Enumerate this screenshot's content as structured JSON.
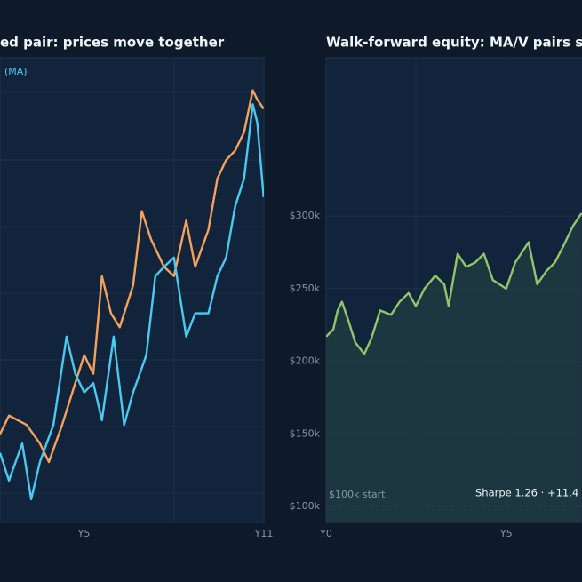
{
  "chart_data": [
    {
      "type": "line",
      "title": "ed pair: prices move together",
      "xlim": [
        2.2,
        11
      ],
      "ylim": [
        0,
        100
      ],
      "xticks": [
        {
          "value": 5,
          "label": "Y5"
        },
        {
          "value": 11,
          "label": "Y11"
        }
      ],
      "grid": true,
      "series": [
        {
          "color": "#f5a25d",
          "x": [
            2.2,
            2.5,
            3.09,
            3.53,
            3.83,
            4.27,
            4.71,
            5.01,
            5.31,
            5.6,
            5.9,
            6.19,
            6.64,
            6.93,
            7.23,
            7.67,
            8.0,
            8.41,
            8.71,
            9.15,
            9.45,
            9.74,
            10.04,
            10.34,
            10.63,
            10.78,
            10.99
          ],
          "values": [
            19,
            23,
            21,
            17,
            13,
            21,
            30,
            36,
            32,
            53,
            45,
            42,
            51,
            67,
            61,
            55,
            53,
            65,
            55,
            63,
            74,
            78,
            80,
            84,
            93,
            91,
            89
          ]
        },
        {
          "name": "(MA)",
          "color": "#4cc9f0",
          "x": [
            2.2,
            2.5,
            2.94,
            3.24,
            3.53,
            3.98,
            4.42,
            4.71,
            5.01,
            5.31,
            5.6,
            5.99,
            6.34,
            6.64,
            7.08,
            7.38,
            7.67,
            8.0,
            8.41,
            8.71,
            9.15,
            9.45,
            9.74,
            10.04,
            10.34,
            10.63,
            10.78,
            10.99
          ],
          "values": [
            15,
            9,
            17,
            5,
            13,
            21,
            40,
            32,
            28,
            30,
            22,
            40,
            21,
            28,
            36,
            53,
            55,
            57,
            40,
            45,
            45,
            53,
            57,
            68,
            74,
            90,
            86,
            70
          ]
        }
      ]
    },
    {
      "type": "area",
      "title": "Walk-forward equity: MA/V pairs s",
      "xlim": [
        0,
        11
      ],
      "ylim": [
        89000,
        409000
      ],
      "xticks": [
        {
          "value": 0,
          "label": "Y0"
        },
        {
          "value": 5,
          "label": "Y5"
        }
      ],
      "yticks": [
        {
          "value": 100000,
          "label": "$100k"
        },
        {
          "value": 150000,
          "label": "$150k"
        },
        {
          "value": 200000,
          "label": "$200k"
        },
        {
          "value": 250000,
          "label": "$250k"
        },
        {
          "value": 300000,
          "label": "$300k"
        }
      ],
      "grid": true,
      "baseline": 100000,
      "annotations": [
        "$100k start",
        "Sharpe 1.26  ·  +11.4"
      ],
      "series": [
        {
          "color": "#93c56a",
          "x": [
            0,
            0.2,
            0.32,
            0.44,
            0.62,
            0.81,
            1.06,
            1.26,
            1.5,
            1.8,
            2.04,
            2.29,
            2.49,
            2.73,
            3.03,
            3.28,
            3.4,
            3.65,
            3.89,
            4.14,
            4.38,
            4.63,
            5.0,
            5.25,
            5.62,
            5.86,
            6.11,
            6.35,
            6.6,
            6.85,
            7.09
          ],
          "values": [
            217000,
            222000,
            235000,
            241000,
            228000,
            213000,
            205000,
            216000,
            235000,
            232000,
            241000,
            247000,
            238000,
            250000,
            259000,
            253000,
            238000,
            274000,
            265000,
            268000,
            274000,
            256000,
            250000,
            268000,
            282000,
            253000,
            262000,
            268000,
            280000,
            293000,
            302000
          ]
        }
      ]
    }
  ]
}
